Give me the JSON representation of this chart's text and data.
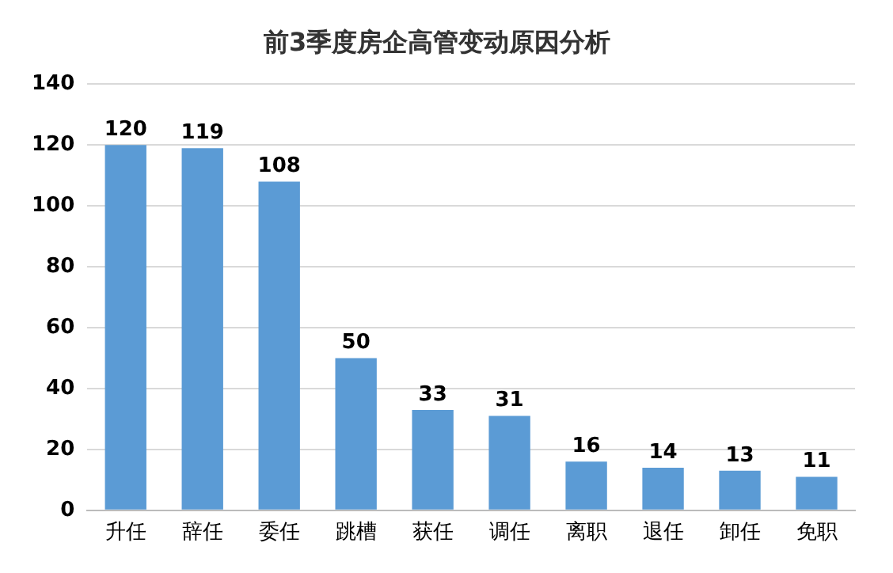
{
  "chart_data": {
    "type": "bar",
    "title": "前3季度房企高管变动原因分析",
    "categories": [
      "升任",
      "辞任",
      "委任",
      "跳槽",
      "获任",
      "调任",
      "离职",
      "退任",
      "卸任",
      "免职"
    ],
    "values": [
      120,
      119,
      108,
      50,
      33,
      31,
      16,
      14,
      13,
      11
    ],
    "color": "#5b9bd5",
    "ylim": [
      0,
      140
    ],
    "yticks": [
      0,
      20,
      40,
      60,
      80,
      100,
      120,
      140
    ],
    "grid": "y",
    "legend": false,
    "data_labels": true
  }
}
